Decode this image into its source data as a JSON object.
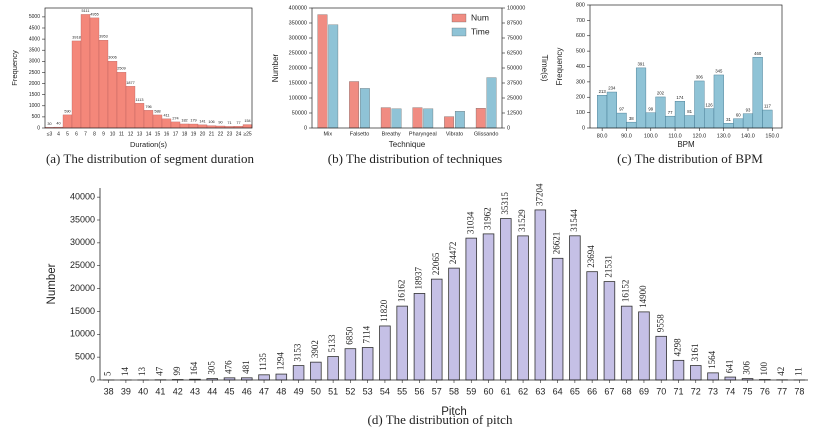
{
  "chart_data": [
    {
      "type": "bar",
      "caption": "(a) The distribution of segment duration",
      "x_label": "Duration(s)",
      "y_label": "Frequency",
      "categories": [
        "≤3",
        "4",
        "5",
        "6",
        "7",
        "8",
        "9",
        "10",
        "11",
        "12",
        "13",
        "14",
        "15",
        "16",
        "17",
        "18",
        "19",
        "20",
        "21",
        "22",
        "23",
        "24",
        "≥25"
      ],
      "values": [
        30,
        40,
        590,
        3918,
        5111,
        4955,
        3953,
        3006,
        2509,
        1877,
        1113,
        796,
        588,
        411,
        274,
        182,
        179,
        141,
        106,
        90,
        71,
        77,
        154
      ],
      "color": "#f4877a",
      "ylim": [
        0,
        5400
      ],
      "yticks": [
        0,
        500,
        1000,
        1500,
        2000,
        2500,
        3000,
        3500,
        4000,
        4500,
        5000
      ]
    },
    {
      "type": "bar",
      "caption": "(b) The distribution of techniques",
      "x_label": "Technique",
      "y_label": "Number",
      "y2_label": "Time(s)",
      "categories": [
        "Mix",
        "Falsetto",
        "Breathy",
        "Pharyngeal",
        "Vibrato",
        "Glissando"
      ],
      "series": [
        {
          "name": "Num",
          "color": "#f08c82",
          "values": [
            378000,
            155000,
            68000,
            68000,
            38000,
            66000
          ]
        },
        {
          "name": "Time",
          "color": "#8fc3d6",
          "axis": "y2",
          "values": [
            86000,
            33000,
            16000,
            16000,
            14000,
            42000
          ]
        }
      ],
      "ylim": [
        0,
        400000
      ],
      "yticks": [
        0,
        50000,
        100000,
        150000,
        200000,
        250000,
        300000,
        350000,
        400000
      ],
      "y2lim": [
        0,
        100000
      ],
      "y2ticks": [
        0,
        12500,
        25000,
        37500,
        50000,
        62500,
        75000,
        87500,
        100000
      ],
      "legend": "upper right"
    },
    {
      "type": "histogram",
      "caption": "(c) The distribution of BPM",
      "x_label": "BPM",
      "y_label": "Frequency",
      "bins": [
        78,
        82,
        86,
        90,
        94,
        98,
        102,
        106,
        110,
        114,
        118,
        122,
        126,
        130,
        134,
        138,
        142,
        146,
        150
      ],
      "values": [
        213,
        234,
        97,
        38,
        391,
        99,
        202,
        77,
        174,
        81,
        306,
        126,
        345,
        31,
        60,
        93,
        460,
        117
      ],
      "color": "#8fc3d6",
      "xlim": [
        75,
        154
      ],
      "xticks": [
        {
          "value": 80,
          "label": "80.0"
        },
        {
          "value": 90,
          "label": "90.0"
        },
        {
          "value": 100,
          "label": "100.0"
        },
        {
          "value": 110,
          "label": "110.0"
        },
        {
          "value": 120,
          "label": "120.0"
        },
        {
          "value": 130,
          "label": "130.0"
        },
        {
          "value": 140,
          "label": "140.0"
        },
        {
          "value": 150,
          "label": "150.0"
        }
      ],
      "ylim": [
        0,
        800
      ],
      "yticks": [
        0,
        100,
        200,
        300,
        400,
        500,
        600,
        700,
        800
      ]
    },
    {
      "type": "bar",
      "caption": "(d) The distribution of pitch",
      "x_label": "Pitch",
      "y_label": "Number",
      "categories": [
        "38",
        "39",
        "40",
        "41",
        "42",
        "43",
        "44",
        "45",
        "46",
        "47",
        "48",
        "49",
        "50",
        "51",
        "52",
        "53",
        "54",
        "55",
        "56",
        "57",
        "58",
        "59",
        "60",
        "61",
        "62",
        "63",
        "64",
        "65",
        "66",
        "67",
        "68",
        "69",
        "70",
        "71",
        "72",
        "73",
        "74",
        "75",
        "76",
        "77",
        "78"
      ],
      "values": [
        5,
        14,
        13,
        47,
        99,
        164,
        305,
        476,
        481,
        1135,
        1294,
        3153,
        3902,
        5133,
        6850,
        7114,
        11820,
        16162,
        18937,
        22065,
        24472,
        31034,
        31962,
        35315,
        31529,
        37204,
        26621,
        31544,
        23694,
        21531,
        16152,
        14900,
        9558,
        4298,
        3161,
        1564,
        641,
        306,
        100,
        42,
        11
      ],
      "color": "#c5c0e6",
      "ylim": [
        0,
        42000
      ],
      "yticks": [
        0,
        5000,
        10000,
        15000,
        20000,
        25000,
        30000,
        35000,
        40000
      ]
    }
  ]
}
